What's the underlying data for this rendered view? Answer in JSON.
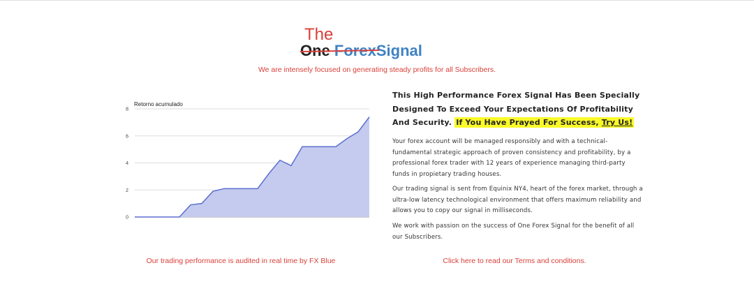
{
  "header": {
    "logo": {
      "top": "The",
      "struck_one": "One",
      "struck_forex": "Forex",
      "signal": "Signal"
    },
    "tagline": "We are intensely focused on generating steady profits for all Subscribers."
  },
  "chart_data": {
    "type": "area",
    "title": "Retorno acumulado",
    "categories": [
      null,
      null,
      null,
      null,
      null,
      null,
      null,
      null,
      null,
      null,
      null,
      null,
      null,
      null,
      null,
      null,
      null,
      null,
      null,
      null,
      null,
      null
    ],
    "values": [
      0,
      0,
      0,
      0,
      0,
      0.9,
      1.0,
      1.9,
      2.1,
      2.1,
      2.1,
      2.1,
      3.2,
      4.2,
      3.8,
      5.2,
      5.2,
      5.2,
      5.2,
      5.8,
      6.3,
      7.4
    ],
    "color": "#5b6fcf",
    "fill": "#c5cbee",
    "ylim": [
      0,
      8
    ],
    "yticks": [
      0,
      2,
      4,
      6,
      8
    ],
    "grid": true
  },
  "content": {
    "heading": {
      "text": "This High Performance Forex Signal Has Been Specially Designed To Exceed Your Expectations Of Profitability And Security.",
      "highlight": "If You Have Prayed For Success,",
      "link": "Try Us!"
    },
    "paragraphs": [
      "Your forex account will be managed responsibly and with a technical-fundamental strategic approach of proven consistency and profitability, by a professional forex trader with 12 years of experience managing third-party funds in propietary trading houses.",
      "Our trading signal is sent from Equinix NY4, heart of the forex market, through a ultra-low latency technological environment that offers maximum reliability and allows you to copy our signal in milliseconds.",
      "We work with passion on the success of One Forex Signal for the benefit of all our Subscribers."
    ]
  },
  "footer": {
    "left": "Our trading performance is audited in real time by FX Blue",
    "right": "Click here to read our Terms and conditions."
  }
}
